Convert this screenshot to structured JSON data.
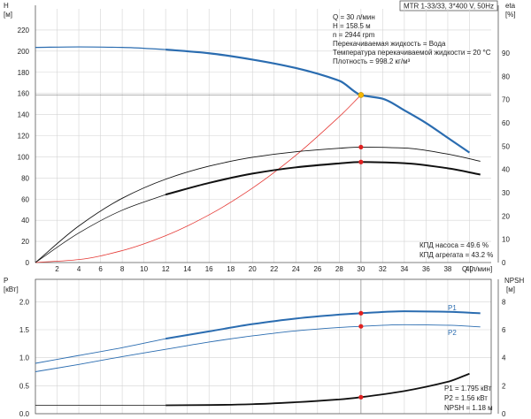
{
  "title_box": "MTR 1-33/33, 3*400 V, 50Hz",
  "operating_point": [
    "Q = 30 л/мин",
    "H = 158.5 м",
    "n = 2944 rpm",
    "Перекачиваемая жидкость = Вода",
    "Температура перекачиваемой жидкости = 20 °C",
    "Плотность = 998.2 кг/м³"
  ],
  "efficiency_notes": [
    "КПД насоса = 49.6 %",
    "КПД агрегата = 43.2 %"
  ],
  "power_notes": [
    "P1 = 1.795 кВт",
    "P2 = 1.56 кВт",
    "NPSH = 1.18 м"
  ],
  "colors": {
    "blue": "#2a6cb0",
    "red": "#e53935",
    "marker": "#e02020",
    "op": "#f5b800",
    "black": "#111111"
  },
  "chart_data": [
    {
      "type": "line",
      "xlabel": "Q [л/мин]",
      "x_ticks": [
        "2",
        "4",
        "6",
        "8",
        "10",
        "12",
        "14",
        "16",
        "18",
        "20",
        "22",
        "24",
        "26",
        "28",
        "30",
        "32",
        "34",
        "36",
        "38",
        "40"
      ],
      "xlim": [
        0,
        42
      ],
      "left_axis": {
        "label": "H",
        "unit": "[м]",
        "ticks": [
          "20",
          "40",
          "60",
          "80",
          "100",
          "120",
          "140",
          "160",
          "180",
          "200",
          "220"
        ],
        "ylim": [
          0,
          240
        ]
      },
      "right_axis": {
        "label": "eta",
        "unit": "[%]",
        "ticks": [
          "10",
          "20",
          "30",
          "40",
          "50",
          "60",
          "70",
          "80",
          "90"
        ],
        "ylim": [
          0,
          109
        ]
      },
      "series": [
        {
          "key": "head",
          "axis": "left",
          "points": [
            [
              0,
              203.5
            ],
            [
              4,
              204
            ],
            [
              8,
              203.5
            ],
            [
              12,
              201.5
            ],
            [
              16,
              198
            ],
            [
              20,
              192
            ],
            [
              24,
              184
            ],
            [
              28,
              172
            ],
            [
              30,
              158.5
            ],
            [
              32,
              155
            ],
            [
              34,
              144
            ],
            [
              36,
              132
            ],
            [
              38,
              118
            ],
            [
              40,
              104
            ]
          ],
          "solid_from": 12
        },
        {
          "key": "system",
          "axis": "left",
          "points": [
            [
              0,
              0
            ],
            [
              4,
              2.8
            ],
            [
              8,
              11.3
            ],
            [
              12,
              25.4
            ],
            [
              16,
              45.1
            ],
            [
              20,
              70.4
            ],
            [
              24,
              101.4
            ],
            [
              28,
              138
            ],
            [
              30,
              158.5
            ]
          ]
        },
        {
          "key": "eta_pump",
          "axis": "right",
          "points": [
            [
              0,
              0
            ],
            [
              4,
              15.7
            ],
            [
              8,
              27.6
            ],
            [
              12,
              35.8
            ],
            [
              16,
              41.4
            ],
            [
              20,
              45.2
            ],
            [
              24,
              47.6
            ],
            [
              28,
              49.1
            ],
            [
              30,
              49.6
            ],
            [
              34,
              49.2
            ],
            [
              38,
              46.6
            ],
            [
              41,
              43.5
            ]
          ]
        },
        {
          "key": "eta_unit",
          "axis": "right",
          "points": [
            [
              0,
              0
            ],
            [
              4,
              12.7
            ],
            [
              8,
              22.5
            ],
            [
              12,
              29.2
            ],
            [
              16,
              34.2
            ],
            [
              20,
              38.2
            ],
            [
              24,
              40.9
            ],
            [
              28,
              42.6
            ],
            [
              30,
              43.2
            ],
            [
              34,
              42.7
            ],
            [
              38,
              40.5
            ],
            [
              41,
              37.8
            ]
          ],
          "solid_from": 12
        }
      ],
      "markers": [
        {
          "key": "op",
          "x": 30,
          "y": 158.5,
          "axis": "left"
        },
        {
          "key": "eta_pump",
          "x": 30,
          "y": 49.6,
          "axis": "right"
        },
        {
          "key": "eta_unit",
          "x": 30,
          "y": 43.2,
          "axis": "right"
        }
      ],
      "reference": {
        "x": 30,
        "y": 158.5
      }
    },
    {
      "type": "line",
      "xlim": [
        0,
        42
      ],
      "left_axis": {
        "label": "P",
        "unit": "[кВт]",
        "ticks": [
          "0.0",
          "0.5",
          "1.0",
          "1.5",
          "2.0"
        ],
        "ylim": [
          0,
          2.4
        ]
      },
      "right_axis": {
        "label": "NPSH",
        "unit": "[м]",
        "ticks": [
          "0",
          "2",
          "4",
          "6",
          "8"
        ],
        "ylim": [
          0,
          9.6
        ]
      },
      "series": [
        {
          "key": "P1",
          "name": "P1",
          "axis": "left",
          "points": [
            [
              0,
              0.9
            ],
            [
              4,
              1.04
            ],
            [
              8,
              1.18
            ],
            [
              12,
              1.34
            ],
            [
              16,
              1.47
            ],
            [
              20,
              1.6
            ],
            [
              24,
              1.7
            ],
            [
              28,
              1.77
            ],
            [
              30,
              1.795
            ],
            [
              34,
              1.83
            ],
            [
              38,
              1.82
            ],
            [
              41,
              1.795
            ]
          ],
          "solid_from": 12
        },
        {
          "key": "P2",
          "name": "P2",
          "axis": "left",
          "points": [
            [
              0,
              0.75
            ],
            [
              4,
              0.88
            ],
            [
              8,
              1.02
            ],
            [
              12,
              1.15
            ],
            [
              16,
              1.28
            ],
            [
              20,
              1.39
            ],
            [
              24,
              1.48
            ],
            [
              28,
              1.54
            ],
            [
              30,
              1.56
            ],
            [
              34,
              1.59
            ],
            [
              38,
              1.58
            ],
            [
              41,
              1.55
            ]
          ],
          "solid_from": 12
        },
        {
          "key": "NPSH",
          "axis": "right",
          "points": [
            [
              0,
              0.6
            ],
            [
              12,
              0.6
            ],
            [
              16,
              0.62
            ],
            [
              20,
              0.68
            ],
            [
              24,
              0.82
            ],
            [
              28,
              1.02
            ],
            [
              30,
              1.18
            ],
            [
              34,
              1.62
            ],
            [
              38,
              2.28
            ],
            [
              40,
              2.86
            ]
          ],
          "solid_from": 12
        }
      ],
      "markers": [
        {
          "key": "P1",
          "x": 30,
          "y": 1.795,
          "axis": "left"
        },
        {
          "key": "P2",
          "x": 30,
          "y": 1.56,
          "axis": "left"
        },
        {
          "key": "NPSH",
          "x": 30,
          "y": 1.18,
          "axis": "right"
        }
      ],
      "reference_x": 30
    }
  ]
}
